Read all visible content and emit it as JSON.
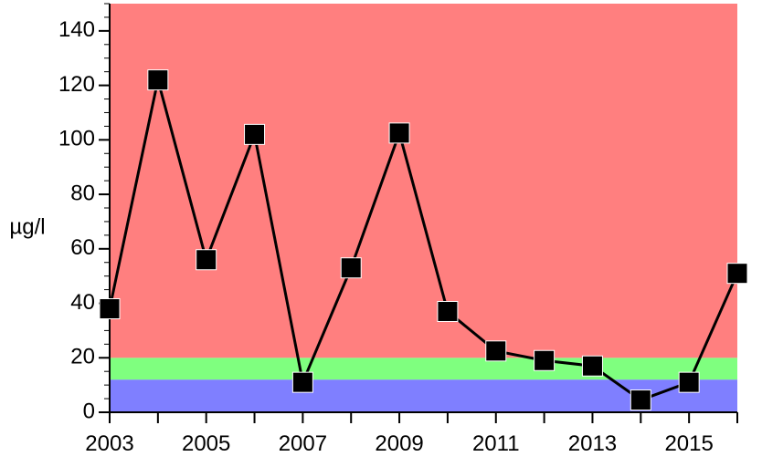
{
  "chart_data": {
    "type": "line",
    "title": "",
    "xlabel": "",
    "ylabel": "µg/l",
    "xlim": [
      2003,
      2016
    ],
    "ylim": [
      0,
      150
    ],
    "x_ticks": [
      2003,
      2005,
      2007,
      2009,
      2011,
      2013,
      2015
    ],
    "y_ticks": [
      0,
      20,
      40,
      60,
      80,
      100,
      120,
      140
    ],
    "grid": false,
    "background_bands": [
      {
        "from": 0,
        "to": 12,
        "color": "#7f7fff"
      },
      {
        "from": 12,
        "to": 20,
        "color": "#7fff7f"
      },
      {
        "from": 20,
        "to": 150,
        "color": "#ff7f7f"
      }
    ],
    "series": [
      {
        "color": "#000000",
        "marker": "square",
        "x": [
          2003,
          2004,
          2005,
          2006,
          2007,
          2008,
          2009,
          2010,
          2011,
          2012,
          2013,
          2014,
          2015,
          2016
        ],
        "values": [
          38,
          122,
          56,
          102,
          11,
          53,
          102.5,
          37,
          22.5,
          19,
          17,
          4.5,
          11,
          51
        ]
      }
    ]
  }
}
